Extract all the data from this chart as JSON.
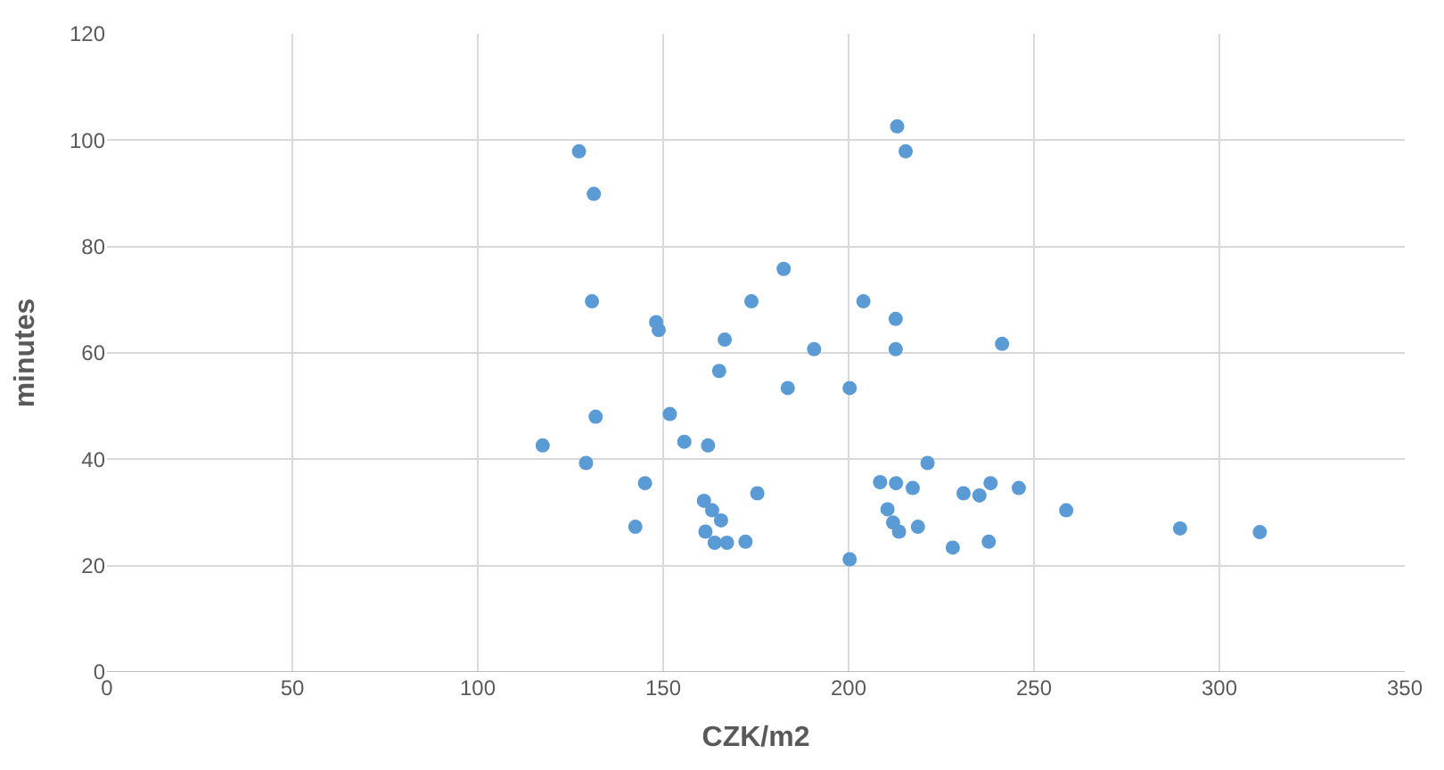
{
  "chart_data": {
    "type": "scatter",
    "xlabel": "CZK/m2",
    "ylabel": "minutes",
    "x": [
      127.3,
      131.3,
      130.8,
      131.8,
      117.5,
      129.2,
      213.1,
      215.4,
      182.5,
      173.8,
      204.0,
      212.7,
      148.1,
      148.8,
      166.6,
      190.7,
      212.7,
      241.4,
      165.1,
      183.6,
      200.3,
      151.8,
      155.7,
      162.1,
      221.3,
      145.1,
      208.5,
      212.8,
      217.3,
      231.0,
      235.3,
      238.3,
      245.9,
      175.4,
      161.0,
      163.2,
      165.6,
      210.5,
      212.0,
      213.6,
      218.7,
      142.5,
      161.4,
      163.9,
      167.2,
      172.2,
      228.1,
      237.8,
      200.3,
      258.7,
      289.4,
      310.9
    ],
    "series": [
      {
        "color": "#5b9bd5",
        "values": [
          97.9,
          89.9,
          69.7,
          48.0,
          42.6,
          39.3,
          102.6,
          97.9,
          75.8,
          69.7,
          69.7,
          66.4,
          65.8,
          64.3,
          62.5,
          60.7,
          60.7,
          61.7,
          56.6,
          53.4,
          53.4,
          48.5,
          43.3,
          42.6,
          39.3,
          35.5,
          35.7,
          35.5,
          34.6,
          33.6,
          33.2,
          35.5,
          34.6,
          33.6,
          32.2,
          30.4,
          28.5,
          30.6,
          28.1,
          26.4,
          27.3,
          27.3,
          26.4,
          24.3,
          24.3,
          24.5,
          23.4,
          24.5,
          21.2,
          30.4,
          27.0,
          26.3
        ]
      }
    ],
    "xlim": [
      0,
      350
    ],
    "xticks": [
      0,
      50,
      100,
      150,
      200,
      250,
      300,
      350
    ],
    "ylim": [
      0,
      120
    ],
    "yticks": [
      0,
      20,
      40,
      60,
      80,
      100,
      120
    ],
    "grid": true,
    "marker": "circle"
  }
}
